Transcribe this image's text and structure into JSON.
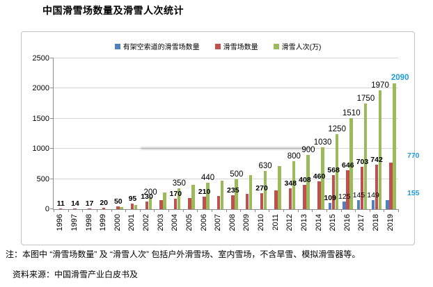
{
  "page_title": "中国滑雪场数量及滑雪人次统计",
  "footnote": "注：本图中 “滑雪场数量” 及 “滑雪人次” 包括户外滑雪场、室内雪场，不含旱雪、模拟滑雪器等。",
  "source": "资料来源：中国滑雪产业白皮书及",
  "colors": {
    "ropeway_blue": "#4f81bd",
    "resorts_red": "#c0504d",
    "visits_green": "#9bbb59",
    "highlight_cyan": "#1f9cd9",
    "gridline_gray": "#d6d6d6",
    "axis_gray": "#8c8c8c"
  },
  "chart_data": {
    "type": "bar",
    "title": "中国滑雪场数量及滑雪人次统计",
    "categories": [
      "1996",
      "1997",
      "1998",
      "1999",
      "2000",
      "2001",
      "2002",
      "2003",
      "2004",
      "2005",
      "2006",
      "2007",
      "2008",
      "2009",
      "2010",
      "2011",
      "2012",
      "2013",
      "2014",
      "2015",
      "2016",
      "2017",
      "2018",
      "2019"
    ],
    "series": [
      {
        "name": "有架空索道的滑雪场数量",
        "color": "#4f81bd",
        "values": [
          null,
          null,
          null,
          null,
          null,
          null,
          null,
          null,
          null,
          null,
          null,
          null,
          null,
          null,
          null,
          null,
          null,
          null,
          null,
          109,
          125,
          145,
          149,
          155
        ],
        "labels": [
          null,
          null,
          null,
          null,
          null,
          null,
          null,
          null,
          null,
          null,
          null,
          null,
          null,
          null,
          null,
          null,
          null,
          null,
          null,
          "109",
          "125",
          "145",
          "149",
          "155"
        ]
      },
      {
        "name": "滑雪场数量",
        "color": "#c0504d",
        "values": [
          11,
          14,
          17,
          20,
          50,
          95,
          130,
          150,
          170,
          190,
          210,
          222,
          235,
          250,
          270,
          310,
          348,
          408,
          460,
          568,
          646,
          703,
          742,
          770
        ],
        "labels": [
          "11",
          "14",
          "17",
          "20",
          "50",
          "95",
          "130",
          null,
          "170",
          null,
          "210",
          null,
          "235",
          null,
          "270",
          null,
          "348",
          "408",
          "460",
          "568",
          "646",
          "703",
          "742",
          "770"
        ]
      },
      {
        "name": "滑雪人次(万)",
        "color": "#9bbb59",
        "values": [
          null,
          null,
          null,
          null,
          30,
          70,
          200,
          280,
          350,
          400,
          440,
          470,
          500,
          570,
          630,
          710,
          800,
          900,
          1030,
          1250,
          1510,
          1750,
          1970,
          2090
        ],
        "labels": [
          null,
          null,
          null,
          null,
          null,
          null,
          "200",
          null,
          "350",
          null,
          "440",
          null,
          "500",
          null,
          "630",
          null,
          "800",
          "900",
          "1030",
          "1250",
          "1510",
          "1750",
          "1970",
          "2090"
        ]
      }
    ],
    "ylim": [
      0,
      2500
    ],
    "yticks": [
      0,
      500,
      1000,
      1500,
      2000,
      2500
    ],
    "grid": true,
    "legend_position": "top-center",
    "highlight_category": "2019",
    "highlight_color": "#1f9cd9",
    "note": "unlabeled bar values estimated from gridlines"
  }
}
